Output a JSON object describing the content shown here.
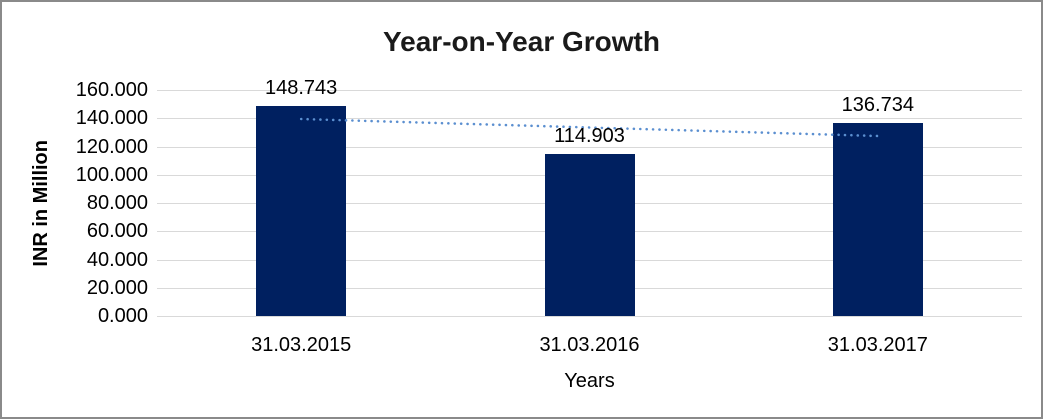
{
  "chart_data": {
    "type": "bar",
    "title": "Year-on-Year Growth",
    "categories": [
      "31.03.2015",
      "31.03.2016",
      "31.03.2017"
    ],
    "values": [
      148.743,
      114.903,
      136.734
    ],
    "value_labels": [
      "148.743",
      "114.903",
      "136.734"
    ],
    "xlabel": "Years",
    "ylabel": "INR in Million",
    "ylim": [
      0,
      160
    ],
    "ytick_step": 20,
    "ytick_labels": [
      "0.000",
      "20.000",
      "40.000",
      "60.000",
      "80.000",
      "100.000",
      "120.000",
      "140.000",
      "160.000"
    ],
    "grid": "horizontal",
    "legend": "none",
    "trendline": {
      "kind": "linear",
      "style": "dotted"
    }
  },
  "colors": {
    "bar": "#002060",
    "trendline": "#5b8fd0",
    "gridline": "#d9d9d9",
    "title_text": "#1a1a1a",
    "axis_text": "#000000",
    "frame_border": "#8a8a8a",
    "background": "#ffffff"
  }
}
